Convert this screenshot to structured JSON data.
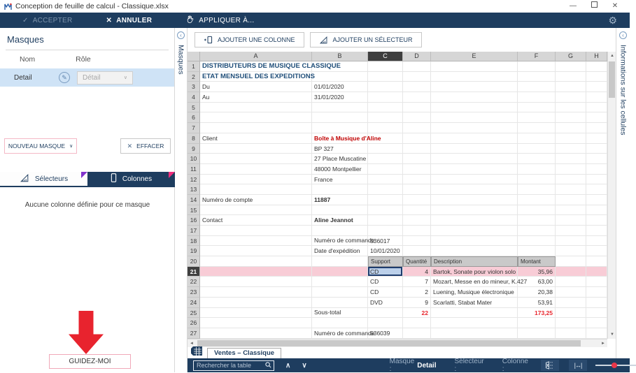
{
  "window": {
    "app_title": "Conception de feuille de calcul - Classique.xlsx"
  },
  "icons": {
    "check": "✓",
    "cross": "✕",
    "gear": "⚙",
    "minimize": "—",
    "close": "✕",
    "edit_pencil": "✎",
    "chevron_down": "∨",
    "chevron_up": "∧",
    "collapse_left": "‹",
    "collapse_right": "‹",
    "scroll_up": "▲",
    "scroll_down": "▼",
    "scroll_left": "◄",
    "scroll_right": "►",
    "fit_width": "|↔|"
  },
  "toolbar": {
    "accept": "ACCEPTER",
    "cancel": "ANNULER",
    "apply_to": "APPLIQUER À..."
  },
  "masks_panel": {
    "title": "Masques",
    "strip_label": "Masques",
    "name_col": "Nom",
    "role_col": "Rôle",
    "row": {
      "name": "Detail",
      "role": "Détail"
    },
    "new_mask": "NOUVEAU MASQUE",
    "clear": "EFFACER",
    "tab_selectors": "Sélecteurs",
    "tab_columns": "Colonnes",
    "empty_text": "Aucune colonne définie pour ce masque",
    "guide_me": "GUIDEZ-MOI"
  },
  "sheet_area": {
    "add_column": "AJOUTER UNE COLONNE",
    "add_selector": "AJOUTER UN SÉLECTEUR",
    "sheet_tab": "Ventes – Classique",
    "cell_info_strip": "Informations sur les cellules"
  },
  "status_bar": {
    "search_placeholder": "Rechercher la table",
    "mask_label": "Masque :",
    "mask_value": "Detail",
    "selector_label": "Sélecteur :",
    "column_label": "Colonne :"
  },
  "colors": {
    "navy": "#1e3d5f",
    "excel_blue": "#1f4e79",
    "dark_red": "#c00000",
    "red_accent": "#e8232e",
    "pink_border": "#f0a8b8",
    "highlight_row": "#f8ccd6",
    "selected_cell": "#bcd0ea",
    "purple_accent": "#8033cc",
    "magenta_accent": "#ef2e7d"
  },
  "grid": {
    "columns": [
      {
        "letter": "A",
        "width": 160
      },
      {
        "letter": "B",
        "width": 80
      },
      {
        "letter": "C",
        "width": 50
      },
      {
        "letter": "D",
        "width": 40
      },
      {
        "letter": "E",
        "width": 124
      },
      {
        "letter": "F",
        "width": 54
      },
      {
        "letter": "G",
        "width": 44
      },
      {
        "letter": "H",
        "width": 30
      }
    ],
    "row_count": 27,
    "selected_column": "C",
    "highlighted_row": 21,
    "selected_cell": "C21",
    "cells": [
      {
        "ref": "A1",
        "text": "DISTRIBUTEURS DE MUSIQUE CLASSIQUE",
        "cls": "blue-title"
      },
      {
        "ref": "A2",
        "text": "ETAT MENSUEL DES EXPEDITIONS",
        "cls": "blue-title"
      },
      {
        "ref": "A3",
        "text": "Du"
      },
      {
        "ref": "B3",
        "text": "01/01/2020"
      },
      {
        "ref": "A4",
        "text": "Au"
      },
      {
        "ref": "B4",
        "text": "31/01/2020"
      },
      {
        "ref": "A8",
        "text": "Client"
      },
      {
        "ref": "B8",
        "text": "Boîte à Musique d'Aline",
        "cls": "red-bold"
      },
      {
        "ref": "B9",
        "text": "BP 327"
      },
      {
        "ref": "B10",
        "text": "27 Place Muscatine"
      },
      {
        "ref": "B11",
        "text": "48000 Montpellier"
      },
      {
        "ref": "B12",
        "text": "France"
      },
      {
        "ref": "A14",
        "text": "Numéro de compte"
      },
      {
        "ref": "B14",
        "text": "11887",
        "cls": "bold"
      },
      {
        "ref": "A16",
        "text": "Contact"
      },
      {
        "ref": "B16",
        "text": "Aline Jeannot",
        "cls": "bold"
      },
      {
        "ref": "B18",
        "text": "Numéro de commande",
        "cls": "low"
      },
      {
        "ref": "C18",
        "text": "536017"
      },
      {
        "ref": "B19",
        "text": "Date d'expédition",
        "cls": "low"
      },
      {
        "ref": "C19",
        "text": "10/01/2020"
      },
      {
        "ref": "C20",
        "text": "Support",
        "cls": "th"
      },
      {
        "ref": "D20",
        "text": "Quantité",
        "cls": "th"
      },
      {
        "ref": "E20",
        "text": "Description",
        "cls": "th"
      },
      {
        "ref": "F20",
        "text": "Montant",
        "cls": "th"
      },
      {
        "ref": "C21",
        "text": "CD"
      },
      {
        "ref": "D21",
        "text": "4",
        "cls": "num"
      },
      {
        "ref": "E21",
        "text": "Bartok, Sonate pour violon solo"
      },
      {
        "ref": "F21",
        "text": "35,96",
        "cls": "num"
      },
      {
        "ref": "C22",
        "text": "CD"
      },
      {
        "ref": "D22",
        "text": "7",
        "cls": "num"
      },
      {
        "ref": "E22",
        "text": "Mozart, Messe en do mineur, K.427"
      },
      {
        "ref": "F22",
        "text": "63,00",
        "cls": "num"
      },
      {
        "ref": "C23",
        "text": "CD"
      },
      {
        "ref": "D23",
        "text": "2",
        "cls": "num"
      },
      {
        "ref": "E23",
        "text": "Luening, Musique électronique"
      },
      {
        "ref": "F23",
        "text": "20,38",
        "cls": "num"
      },
      {
        "ref": "C24",
        "text": "DVD"
      },
      {
        "ref": "D24",
        "text": "9",
        "cls": "num"
      },
      {
        "ref": "E24",
        "text": "Scarlatti, Stabat Mater"
      },
      {
        "ref": "F24",
        "text": "53,91",
        "cls": "num"
      },
      {
        "ref": "B25",
        "text": "Sous-total",
        "cls": "low"
      },
      {
        "ref": "D25",
        "text": "22",
        "cls": "num red-num"
      },
      {
        "ref": "F25",
        "text": "173,25",
        "cls": "num red-num"
      },
      {
        "ref": "B27",
        "text": "Numéro de commande",
        "cls": "low"
      },
      {
        "ref": "C27",
        "text": "536039"
      }
    ]
  }
}
